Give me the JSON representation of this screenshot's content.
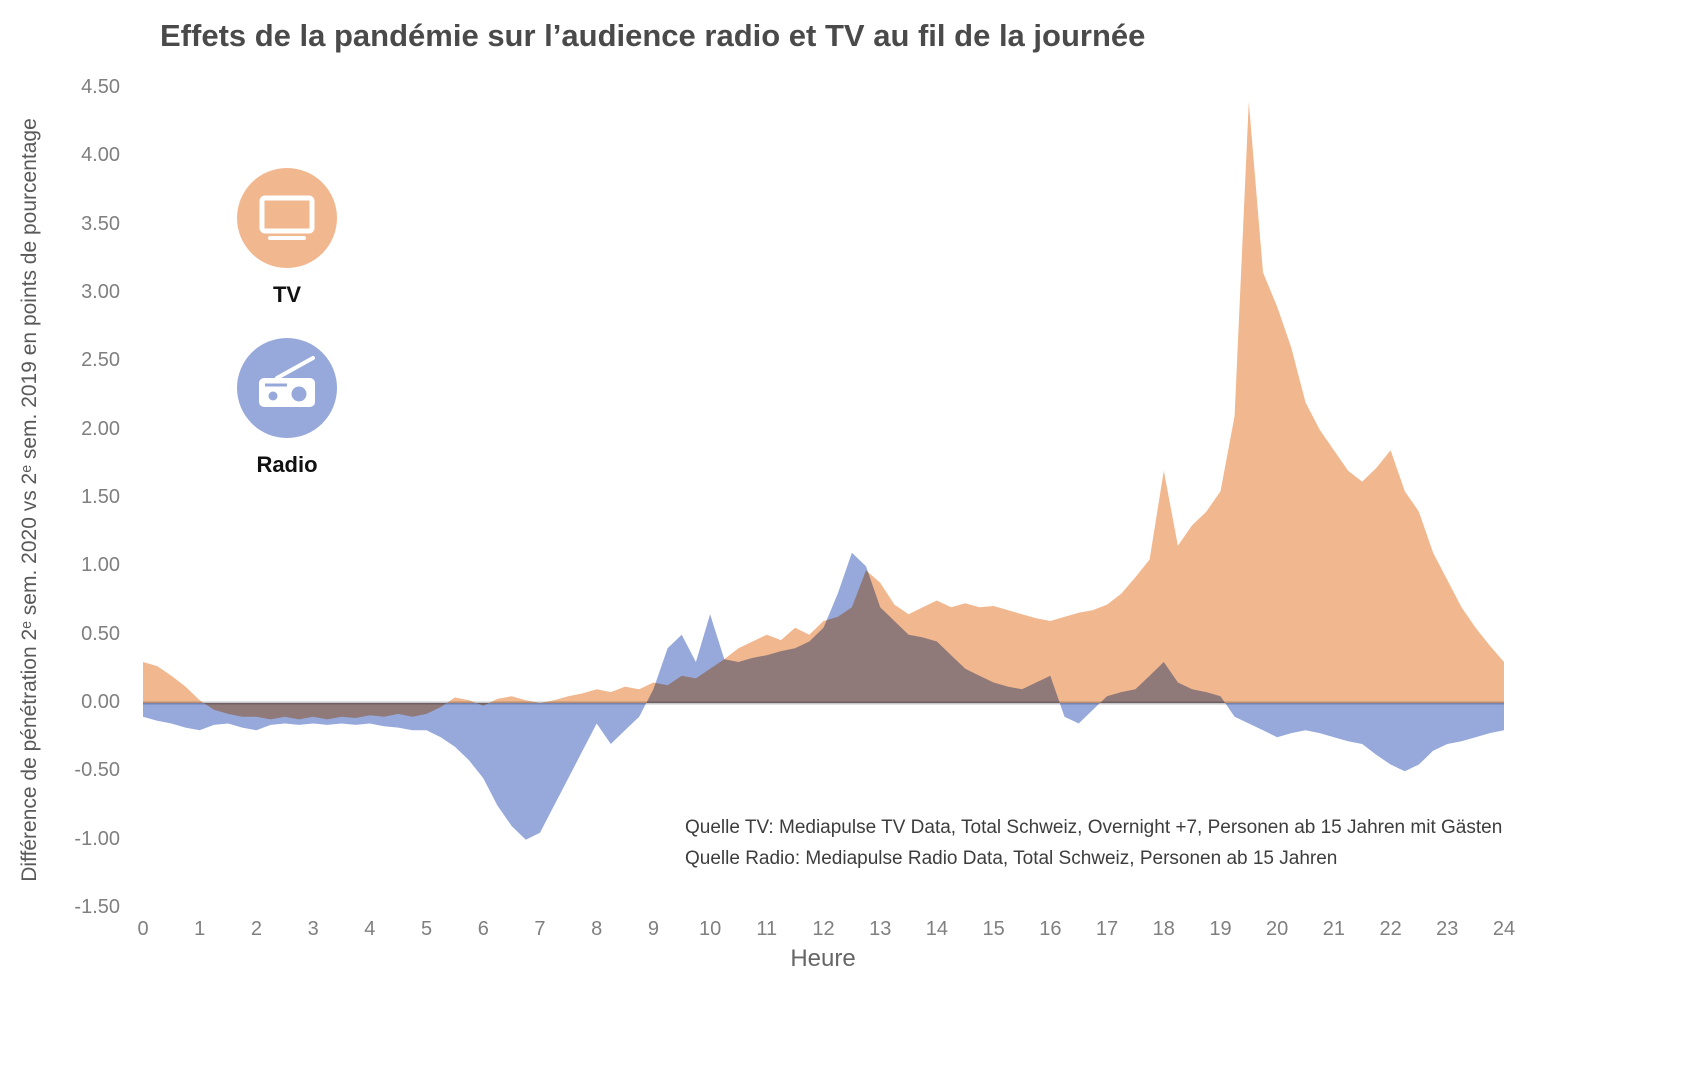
{
  "title": "Effets de la pandémie sur l’audience radio et TV au fil de la journée",
  "legend": {
    "tv_label": "TV",
    "radio_label": "Radio"
  },
  "sources": {
    "tv": "Quelle TV: Mediapulse TV Data, Total Schweiz, Overnight +7, Personen ab 15 Jahren mit Gästen",
    "radio": "Quelle Radio: Mediapulse Radio Data, Total Schweiz, Personen ab 15 Jahren"
  },
  "colors": {
    "tv": "#F1B78E",
    "radio": "#97A9DA",
    "zero_line": "#c7c7cb"
  },
  "chart_data": {
    "type": "area",
    "title": "Effets de la pandémie sur l’audience radio et TV au fil de la journée",
    "xlabel": "Heure",
    "ylabel": "Différence de pénétration 2ᵉ sem. 2020 vs  2ᵉ sem. 2019 en points de pourcentage",
    "xlim": [
      0,
      24
    ],
    "ylim": [
      -1.5,
      4.5
    ],
    "grid": false,
    "legend_position": "upper-left",
    "xtick_labels": [
      "0",
      "1",
      "2",
      "3",
      "4",
      "5",
      "6",
      "7",
      "8",
      "9",
      "10",
      "11",
      "12",
      "13",
      "14",
      "15",
      "16",
      "17",
      "18",
      "19",
      "20",
      "21",
      "22",
      "23",
      "24"
    ],
    "xtick_values": [
      0,
      1,
      2,
      3,
      4,
      5,
      6,
      7,
      8,
      9,
      10,
      11,
      12,
      13,
      14,
      15,
      16,
      17,
      18,
      19,
      20,
      21,
      22,
      23,
      24
    ],
    "ytick_labels": [
      "4.50",
      "4.00",
      "3.50",
      "3.00",
      "2.50",
      "2.00",
      "1.50",
      "1.00",
      "0.50",
      "0.00",
      "-0.50",
      "-1.00",
      "-1.50"
    ],
    "ytick_values": [
      4.5,
      4.0,
      3.5,
      3.0,
      2.5,
      2.0,
      1.5,
      1.0,
      0.5,
      0.0,
      -0.5,
      -1.0,
      -1.5
    ],
    "x": [
      0,
      0.25,
      0.5,
      0.75,
      1,
      1.25,
      1.5,
      1.75,
      2,
      2.25,
      2.5,
      2.75,
      3,
      3.25,
      3.5,
      3.75,
      4,
      4.25,
      4.5,
      4.75,
      5,
      5.25,
      5.5,
      5.75,
      6,
      6.25,
      6.5,
      6.75,
      7,
      7.25,
      7.5,
      7.75,
      8,
      8.25,
      8.5,
      8.75,
      9,
      9.25,
      9.5,
      9.75,
      10,
      10.25,
      10.5,
      10.75,
      11,
      11.25,
      11.5,
      11.75,
      12,
      12.25,
      12.5,
      12.75,
      13,
      13.25,
      13.5,
      13.75,
      14,
      14.25,
      14.5,
      14.75,
      15,
      15.25,
      15.5,
      15.75,
      16,
      16.25,
      16.5,
      16.75,
      17,
      17.25,
      17.5,
      17.75,
      18,
      18.25,
      18.5,
      18.75,
      19,
      19.25,
      19.5,
      19.75,
      20,
      20.25,
      20.5,
      20.75,
      21,
      21.25,
      21.5,
      21.75,
      22,
      22.25,
      22.5,
      22.75,
      23,
      23.25,
      23.5,
      23.75,
      24
    ],
    "series": [
      {
        "name": "TV",
        "color": "#F1B78E",
        "values": [
          0.3,
          0.27,
          0.2,
          0.12,
          0.02,
          -0.05,
          -0.08,
          -0.1,
          -0.1,
          -0.12,
          -0.1,
          -0.12,
          -0.1,
          -0.12,
          -0.1,
          -0.11,
          -0.09,
          -0.1,
          -0.08,
          -0.1,
          -0.08,
          -0.03,
          0.04,
          0.02,
          -0.02,
          0.03,
          0.05,
          0.02,
          0.0,
          0.02,
          0.05,
          0.07,
          0.1,
          0.08,
          0.12,
          0.1,
          0.15,
          0.13,
          0.2,
          0.18,
          0.25,
          0.32,
          0.4,
          0.45,
          0.5,
          0.46,
          0.55,
          0.5,
          0.6,
          0.63,
          0.7,
          0.97,
          0.88,
          0.72,
          0.65,
          0.7,
          0.75,
          0.7,
          0.73,
          0.7,
          0.71,
          0.68,
          0.65,
          0.62,
          0.6,
          0.63,
          0.66,
          0.68,
          0.72,
          0.8,
          0.92,
          1.05,
          1.7,
          1.15,
          1.3,
          1.4,
          1.55,
          2.1,
          4.4,
          3.15,
          2.9,
          2.6,
          2.2,
          2.0,
          1.85,
          1.7,
          1.62,
          1.72,
          1.85,
          1.55,
          1.4,
          1.1,
          0.9,
          0.7,
          0.55,
          0.42,
          0.3
        ]
      },
      {
        "name": "Radio",
        "color": "#97A9DA",
        "values": [
          -0.1,
          -0.13,
          -0.15,
          -0.18,
          -0.2,
          -0.16,
          -0.15,
          -0.18,
          -0.2,
          -0.16,
          -0.15,
          -0.16,
          -0.15,
          -0.16,
          -0.15,
          -0.16,
          -0.15,
          -0.17,
          -0.18,
          -0.2,
          -0.2,
          -0.25,
          -0.32,
          -0.42,
          -0.55,
          -0.75,
          -0.9,
          -1.0,
          -0.95,
          -0.75,
          -0.55,
          -0.35,
          -0.15,
          -0.3,
          -0.2,
          -0.1,
          0.1,
          0.4,
          0.5,
          0.3,
          0.65,
          0.32,
          0.3,
          0.33,
          0.35,
          0.38,
          0.4,
          0.45,
          0.55,
          0.8,
          1.1,
          1.0,
          0.7,
          0.6,
          0.5,
          0.48,
          0.45,
          0.35,
          0.25,
          0.2,
          0.15,
          0.12,
          0.1,
          0.15,
          0.2,
          -0.1,
          -0.15,
          -0.05,
          0.05,
          0.08,
          0.1,
          0.2,
          0.3,
          0.15,
          0.1,
          0.08,
          0.05,
          -0.1,
          -0.15,
          -0.2,
          -0.25,
          -0.22,
          -0.2,
          -0.22,
          -0.25,
          -0.28,
          -0.3,
          -0.38,
          -0.45,
          -0.5,
          -0.45,
          -0.35,
          -0.3,
          -0.28,
          -0.25,
          -0.22,
          -0.2
        ]
      }
    ]
  }
}
